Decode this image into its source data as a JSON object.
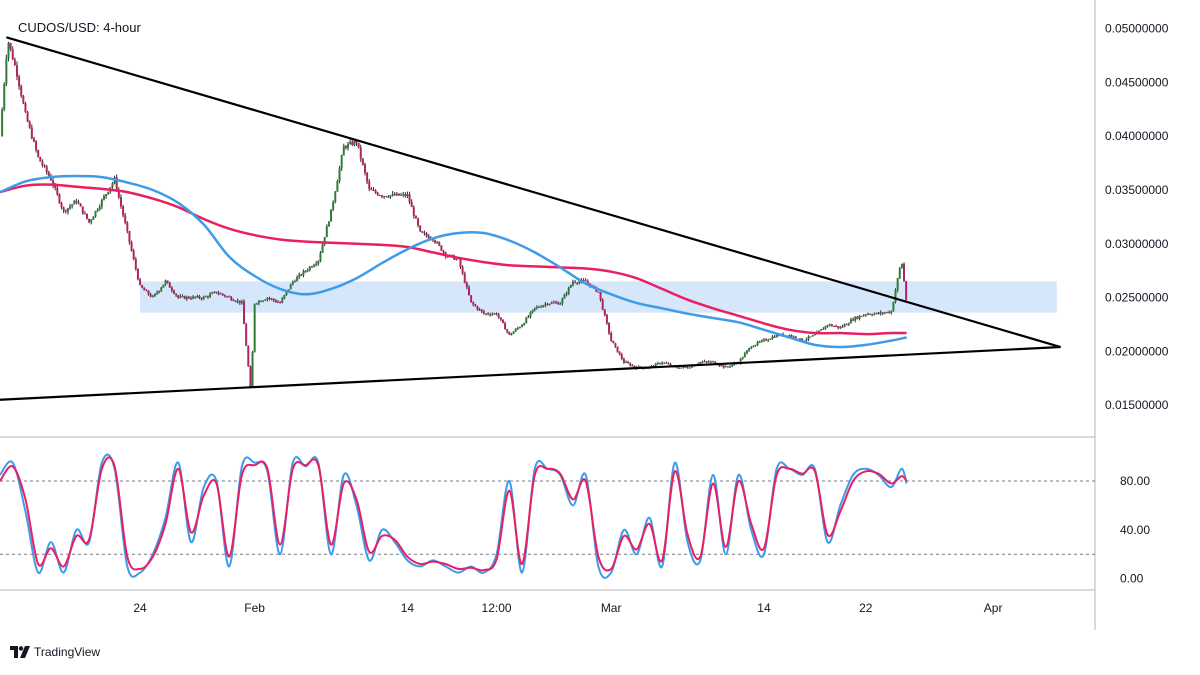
{
  "title": "CUDOS/USD: 4-hour",
  "brand": "TradingView",
  "colors": {
    "up": "#26a69a",
    "down": "#b2225e",
    "ma_fast": "#3d9be9",
    "ma_slow": "#e91e63",
    "zone": "#cfe3fb",
    "trendline": "#000000",
    "grid_dash": "#787b86",
    "osc_k": "#3d9be9",
    "osc_d": "#e91e63"
  },
  "chart_data": [
    {
      "type": "line",
      "name": "price_panel",
      "ylim": [
        0.0125,
        0.0522
      ],
      "y_ticks": [
        "0.05000000",
        "0.04500000",
        "0.04000000",
        "0.03500000",
        "0.03000000",
        "0.02500000",
        "0.02000000",
        "0.01500000"
      ],
      "y_tick_values": [
        0.05,
        0.045,
        0.04,
        0.035,
        0.03,
        0.025,
        0.02,
        0.015
      ],
      "x_tick_labels": [
        "24",
        "Feb",
        "14",
        "12:00",
        "Mar",
        "14",
        "22",
        "Apr"
      ],
      "x_tick_days": [
        23,
        32,
        44,
        51,
        60,
        72,
        80,
        90
      ],
      "x_range_days": [
        12,
        98
      ],
      "price_series": {
        "name": "close",
        "x_days": [
          12,
          12.6,
          13.3,
          14,
          15,
          16,
          17,
          18,
          19,
          20,
          21,
          22,
          23,
          24,
          25,
          26,
          27,
          28,
          29,
          30,
          31,
          31.7,
          32,
          33,
          34,
          35,
          36,
          37,
          38,
          39,
          40,
          41,
          42,
          43,
          44,
          45,
          46,
          47,
          48,
          49,
          50,
          51,
          52,
          53,
          54,
          55,
          56,
          57,
          58,
          59,
          60,
          61,
          62,
          63,
          64,
          65,
          66,
          67,
          68,
          69,
          70,
          71,
          72,
          73,
          74,
          75,
          76,
          77,
          78,
          79,
          80,
          81,
          82,
          82.8,
          83.2
        ],
        "values": [
          0.04,
          0.049,
          0.046,
          0.042,
          0.038,
          0.036,
          0.033,
          0.034,
          0.032,
          0.034,
          0.036,
          0.031,
          0.026,
          0.025,
          0.0265,
          0.025,
          0.025,
          0.025,
          0.0255,
          0.025,
          0.0245,
          0.0162,
          0.0245,
          0.025,
          0.0245,
          0.0265,
          0.0275,
          0.0285,
          0.033,
          0.039,
          0.0395,
          0.035,
          0.0345,
          0.0345,
          0.0345,
          0.031,
          0.0305,
          0.029,
          0.0285,
          0.0245,
          0.0235,
          0.0235,
          0.0215,
          0.0225,
          0.024,
          0.0245,
          0.0245,
          0.0265,
          0.0265,
          0.0255,
          0.021,
          0.019,
          0.0185,
          0.0185,
          0.019,
          0.0185,
          0.0185,
          0.019,
          0.019,
          0.0185,
          0.019,
          0.0205,
          0.021,
          0.0215,
          0.0215,
          0.021,
          0.0215,
          0.0225,
          0.0222,
          0.023,
          0.0235,
          0.0235,
          0.0237,
          0.0285,
          0.0245
        ]
      },
      "ma_fast": {
        "x_days": [
          12,
          14,
          16,
          18,
          20,
          22,
          24,
          26,
          28,
          30,
          32,
          34,
          36,
          38,
          40,
          42,
          44,
          46,
          48,
          50,
          52,
          54,
          56,
          58,
          60,
          62,
          64,
          66,
          68,
          70,
          72,
          74,
          76,
          78,
          80,
          82,
          83.2
        ],
        "values": [
          0.0348,
          0.0358,
          0.0362,
          0.0363,
          0.0362,
          0.0357,
          0.035,
          0.0338,
          0.0318,
          0.0288,
          0.027,
          0.0258,
          0.0253,
          0.0258,
          0.0268,
          0.0282,
          0.0295,
          0.0305,
          0.031,
          0.031,
          0.0303,
          0.0292,
          0.0278,
          0.0263,
          0.0253,
          0.0245,
          0.024,
          0.0235,
          0.0231,
          0.0227,
          0.022,
          0.0213,
          0.0206,
          0.0204,
          0.0206,
          0.021,
          0.0213
        ]
      },
      "ma_slow": {
        "x_days": [
          12,
          14,
          16,
          18,
          20,
          22,
          24,
          26,
          28,
          30,
          32,
          34,
          36,
          38,
          40,
          42,
          44,
          46,
          48,
          50,
          52,
          54,
          56,
          58,
          60,
          62,
          64,
          66,
          68,
          70,
          72,
          74,
          76,
          78,
          80,
          82,
          83.2
        ],
        "values": [
          0.0348,
          0.0354,
          0.0355,
          0.0353,
          0.0351,
          0.0348,
          0.0342,
          0.0334,
          0.0323,
          0.0314,
          0.0308,
          0.0304,
          0.0302,
          0.0301,
          0.03,
          0.0299,
          0.0297,
          0.0292,
          0.0287,
          0.0283,
          0.028,
          0.0279,
          0.0278,
          0.0277,
          0.0274,
          0.0268,
          0.0258,
          0.0248,
          0.024,
          0.0233,
          0.0226,
          0.022,
          0.0217,
          0.0217,
          0.0216,
          0.0217,
          0.0217
        ]
      },
      "zone": {
        "x_days": [
          23,
          95
        ],
        "y_range": [
          0.0236,
          0.0265
        ]
      },
      "trendlines": [
        {
          "x_days": [
            12.5,
            95.3
          ],
          "values": [
            0.0492,
            0.0204
          ]
        },
        {
          "x_days": [
            12,
            95.3
          ],
          "values": [
            0.0155,
            0.0204
          ]
        }
      ]
    },
    {
      "type": "line",
      "name": "oscillator_panel",
      "ylim": [
        -6,
        112
      ],
      "y_ticks": [
        "80.00",
        "40.00",
        "0.00"
      ],
      "y_tick_values": [
        80,
        40,
        0
      ],
      "guide_lines": [
        80,
        20
      ],
      "series_k": {
        "x_days": [
          12,
          13,
          14,
          15,
          16,
          17,
          18,
          19,
          20,
          21,
          22,
          23,
          24,
          25,
          26,
          27,
          28,
          29,
          30,
          31,
          32,
          33,
          34,
          35,
          36,
          37,
          38,
          39,
          40,
          41,
          42,
          43,
          44,
          45,
          46,
          47,
          48,
          49,
          50,
          51,
          52,
          53,
          54,
          55,
          56,
          57,
          58,
          59,
          60,
          61,
          62,
          63,
          64,
          65,
          66,
          67,
          68,
          69,
          70,
          71,
          72,
          73,
          74,
          75,
          76,
          77,
          78,
          79,
          80,
          81,
          82,
          82.8,
          83.2
        ],
        "values": [
          85,
          95,
          55,
          5,
          30,
          5,
          40,
          30,
          95,
          90,
          10,
          5,
          20,
          50,
          95,
          30,
          75,
          80,
          10,
          92,
          95,
          88,
          20,
          95,
          92,
          95,
          20,
          85,
          60,
          15,
          40,
          30,
          15,
          10,
          15,
          10,
          5,
          10,
          5,
          20,
          80,
          5,
          90,
          90,
          85,
          60,
          85,
          10,
          5,
          40,
          20,
          50,
          10,
          95,
          30,
          15,
          85,
          20,
          85,
          40,
          20,
          90,
          90,
          85,
          90,
          30,
          60,
          85,
          90,
          85,
          75,
          90,
          78
        ]
      },
      "series_d": {
        "x_days": [
          12,
          13,
          14,
          15,
          16,
          17,
          18,
          19,
          20,
          21,
          22,
          23,
          24,
          25,
          26,
          27,
          28,
          29,
          30,
          31,
          32,
          33,
          34,
          35,
          36,
          37,
          38,
          39,
          40,
          41,
          42,
          43,
          44,
          45,
          46,
          47,
          48,
          49,
          50,
          51,
          52,
          53,
          54,
          55,
          56,
          57,
          58,
          59,
          60,
          61,
          62,
          63,
          64,
          65,
          66,
          67,
          68,
          69,
          70,
          71,
          72,
          73,
          74,
          75,
          76,
          77,
          78,
          79,
          80,
          81,
          82,
          82.8,
          83.2
        ],
        "values": [
          80,
          92,
          65,
          12,
          25,
          10,
          35,
          32,
          90,
          92,
          18,
          8,
          18,
          45,
          90,
          38,
          68,
          78,
          18,
          85,
          93,
          90,
          28,
          90,
          93,
          93,
          28,
          78,
          65,
          22,
          35,
          32,
          18,
          12,
          14,
          12,
          8,
          9,
          7,
          16,
          72,
          12,
          85,
          90,
          86,
          65,
          80,
          18,
          8,
          35,
          24,
          45,
          15,
          88,
          36,
          18,
          78,
          26,
          80,
          45,
          25,
          85,
          90,
          86,
          88,
          36,
          55,
          80,
          88,
          86,
          78,
          84,
          80
        ]
      }
    }
  ]
}
